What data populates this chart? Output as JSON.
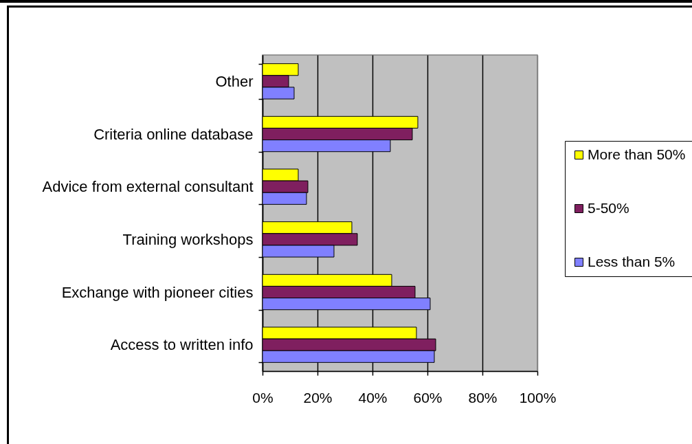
{
  "chart_data": {
    "type": "bar",
    "orientation": "horizontal",
    "categories": [
      "Other",
      "Criteria online database",
      "Advice from external consultant",
      "Training workshops",
      "Exchange with pioneer cities",
      "Access to written info"
    ],
    "series": [
      {
        "name": "More than 50%",
        "color": "#ffff00",
        "values": [
          13,
          56.5,
          13,
          32.5,
          47,
          56
        ]
      },
      {
        "name": "5-50%",
        "color": "#7f1f5f",
        "values": [
          9.5,
          54.5,
          16.5,
          34.5,
          55.5,
          63
        ]
      },
      {
        "name": "Less than 5%",
        "color": "#8080ff",
        "values": [
          11.5,
          46.5,
          16,
          26,
          61,
          62.5
        ]
      }
    ],
    "xlim": [
      0,
      100
    ],
    "xticks": [
      {
        "value": 0,
        "label": "0%"
      },
      {
        "value": 20,
        "label": "20%"
      },
      {
        "value": 40,
        "label": "40%"
      },
      {
        "value": 60,
        "label": "60%"
      },
      {
        "value": 80,
        "label": "80%"
      },
      {
        "value": 100,
        "label": "100%"
      }
    ],
    "grid": "x",
    "legend": "right"
  }
}
